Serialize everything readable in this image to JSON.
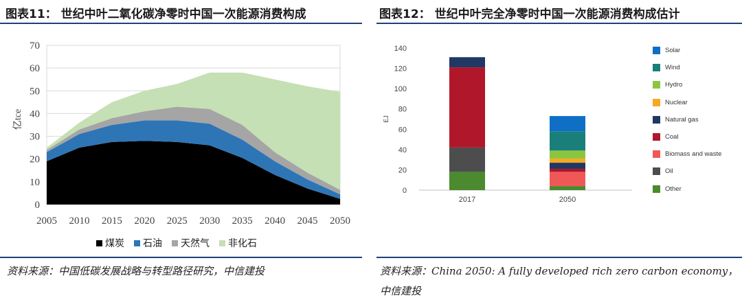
{
  "left": {
    "label": "图表11：",
    "title": "世纪中叶二氧化碳净零时中国一次能源消费构成",
    "source": "资料来源：中国低碳发展战略与转型路径研究，中信建投"
  },
  "right": {
    "label": "图表12：",
    "title": "世纪中叶完全净零时中国一次能源消费构成估计",
    "source_line1": "资料来源：China 2050: A fully developed rich zero carbon economy，",
    "source_line2": "中信建投"
  },
  "chart_data": [
    {
      "type": "area",
      "stacked": true,
      "x": [
        2005,
        2010,
        2015,
        2020,
        2025,
        2030,
        2035,
        2040,
        2045,
        2050
      ],
      "ylabel": "亿tce",
      "ylim": [
        0,
        70
      ],
      "yticks": [
        0,
        10,
        20,
        30,
        40,
        50,
        60,
        70
      ],
      "grid": true,
      "legend_position": "bottom",
      "series": [
        {
          "name": "煤炭",
          "color": "#000000",
          "values": [
            19,
            25,
            27.5,
            28,
            27.5,
            26,
            20.5,
            13,
            7,
            2.5
          ]
        },
        {
          "name": "石油",
          "color": "#2e75b6",
          "values": [
            4,
            6,
            7.5,
            9,
            9.5,
            9.5,
            8,
            6,
            4,
            2
          ]
        },
        {
          "name": "天然气",
          "color": "#a5a5a5",
          "values": [
            1,
            2,
            3,
            4,
            6,
            6.5,
            6.5,
            4,
            3,
            2
          ]
        },
        {
          "name": "非化石",
          "color": "#c5e0b4",
          "values": [
            1,
            3,
            7,
            9,
            10,
            16,
            23,
            32,
            38,
            43
          ]
        }
      ]
    },
    {
      "type": "bar",
      "stacked": true,
      "categories": [
        "2017",
        "2050"
      ],
      "ylabel": "EJ",
      "ylim": [
        0,
        140
      ],
      "yticks": [
        0,
        20,
        40,
        60,
        80,
        100,
        120,
        140
      ],
      "grid": false,
      "legend_position": "right",
      "series": [
        {
          "name": "Other",
          "color": "#4b8a2e",
          "values": [
            18,
            4
          ]
        },
        {
          "name": "Oil",
          "color": "#4d4d4d",
          "values": [
            24,
            0
          ]
        },
        {
          "name": "Biomass and waste",
          "color": "#f05858",
          "values": [
            0,
            14
          ]
        },
        {
          "name": "Coal",
          "color": "#b0172a",
          "values": [
            79,
            3
          ]
        },
        {
          "name": "Natural gas",
          "color": "#1f3864",
          "values": [
            10,
            6
          ]
        },
        {
          "name": "Nuclear",
          "color": "#f7a823",
          "values": [
            0,
            4
          ]
        },
        {
          "name": "Hydro",
          "color": "#8cc63f",
          "values": [
            0,
            8
          ]
        },
        {
          "name": "Wind",
          "color": "#1a7f7a",
          "values": [
            0,
            19
          ]
        },
        {
          "name": "Solar",
          "color": "#0f6fc6",
          "values": [
            0,
            15
          ]
        }
      ],
      "legend_order": [
        "Solar",
        "Wind",
        "Hydro",
        "Nuclear",
        "Natural gas",
        "Coal",
        "Biomass and waste",
        "Oil",
        "Other"
      ]
    }
  ]
}
